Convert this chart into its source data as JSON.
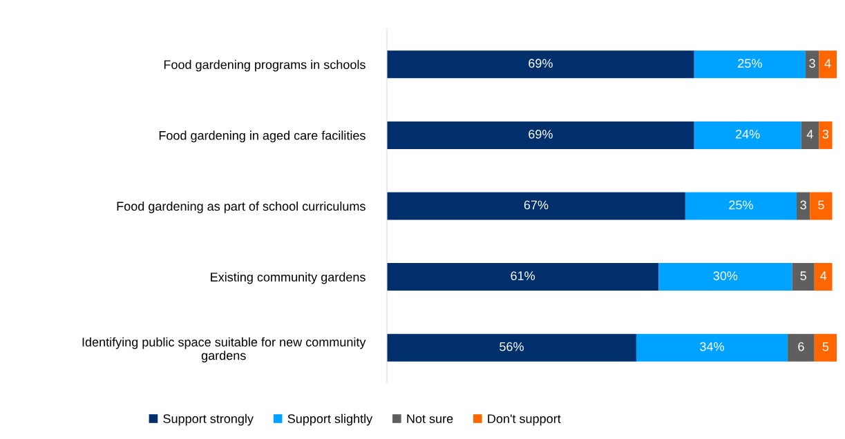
{
  "chart_data": {
    "type": "bar",
    "orientation": "horizontal",
    "stacked": true,
    "legend": "bottom",
    "grid": false,
    "tick_labels": "y",
    "categories": [
      "Food gardening programs in schools",
      "Food gardening in aged care facilities",
      "Food gardening as part of school curriculums",
      "Existing community gardens",
      "Identifying public space suitable for new community\ngardens"
    ],
    "series": [
      {
        "name": "Support strongly",
        "color": "#002f6c",
        "values": [
          69,
          69,
          67,
          61,
          56
        ],
        "value_labels": [
          "69%",
          "69%",
          "67%",
          "61%",
          "56%"
        ]
      },
      {
        "name": "Support slightly",
        "color": "#00a2ff",
        "values": [
          25,
          24,
          25,
          30,
          34
        ],
        "value_labels": [
          "25%",
          "24%",
          "25%",
          "30%",
          "34%"
        ]
      },
      {
        "name": "Not sure",
        "color": "#5f5f5f",
        "values": [
          3,
          4,
          3,
          5,
          6
        ],
        "value_labels": [
          "3",
          "4",
          "3",
          "5",
          "6"
        ]
      },
      {
        "name": "Don't support",
        "color": "#ff6600",
        "values": [
          4,
          3,
          5,
          4,
          5
        ],
        "value_labels": [
          "4",
          "3",
          "5",
          "4",
          "5"
        ]
      }
    ]
  }
}
